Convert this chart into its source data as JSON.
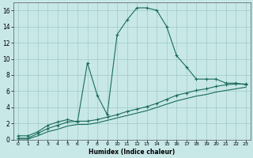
{
  "xlabel": "Humidex (Indice chaleur)",
  "xlim": [
    -0.5,
    23.5
  ],
  "ylim": [
    0,
    17
  ],
  "background_color": "#c8e8e8",
  "grid_color": "#a0c8c8",
  "line_color": "#1a6b5a",
  "xticks": [
    0,
    1,
    2,
    3,
    4,
    5,
    6,
    7,
    8,
    9,
    10,
    11,
    12,
    13,
    14,
    15,
    16,
    17,
    18,
    19,
    20,
    21,
    22,
    23
  ],
  "yticks": [
    0,
    2,
    4,
    6,
    8,
    10,
    12,
    14,
    16
  ],
  "curve1_x": [
    0,
    1,
    2,
    3,
    4,
    5,
    6,
    7,
    8,
    9,
    10,
    11,
    12,
    13,
    14,
    15,
    16,
    17,
    18,
    19,
    20,
    21,
    22,
    23
  ],
  "curve1_y": [
    0.5,
    0.5,
    1.0,
    1.8,
    2.2,
    2.5,
    2.2,
    9.5,
    5.5,
    3.1,
    13.0,
    14.8,
    16.3,
    16.3,
    16.0,
    14.0,
    10.4,
    9.0,
    7.5,
    7.5,
    7.5,
    7.0,
    7.0,
    6.8
  ],
  "curve2_x": [
    0,
    1,
    2,
    3,
    4,
    5,
    6,
    7,
    8,
    9,
    10,
    11,
    12,
    13,
    14,
    15,
    16,
    17,
    18,
    19,
    20,
    21,
    22,
    23
  ],
  "curve2_y": [
    0.2,
    0.2,
    0.8,
    1.4,
    1.8,
    2.2,
    2.3,
    2.3,
    2.5,
    2.8,
    3.1,
    3.5,
    3.8,
    4.1,
    4.5,
    5.0,
    5.5,
    5.8,
    6.1,
    6.3,
    6.6,
    6.8,
    6.9,
    6.9
  ],
  "curve3_x": [
    0,
    1,
    2,
    3,
    4,
    5,
    6,
    7,
    8,
    9,
    10,
    11,
    12,
    13,
    14,
    15,
    16,
    17,
    18,
    19,
    20,
    21,
    22,
    23
  ],
  "curve3_y": [
    0.1,
    0.1,
    0.5,
    1.0,
    1.3,
    1.7,
    1.9,
    1.9,
    2.1,
    2.4,
    2.7,
    3.0,
    3.3,
    3.6,
    4.0,
    4.4,
    4.8,
    5.1,
    5.4,
    5.6,
    5.9,
    6.1,
    6.3,
    6.5
  ]
}
